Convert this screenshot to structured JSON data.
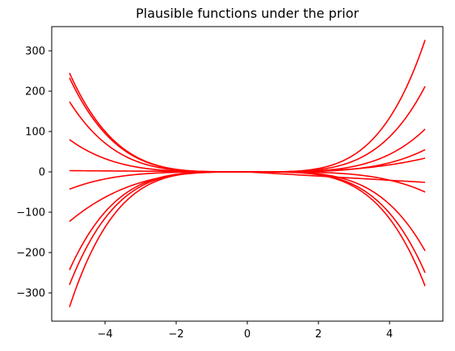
{
  "chart_data": {
    "type": "line",
    "title": "Plausible functions under the prior",
    "xlabel": "",
    "ylabel": "",
    "xlim": [
      -5.5,
      5.5
    ],
    "ylim": [
      -370,
      360
    ],
    "xticks": [
      -4,
      -2,
      0,
      2,
      4
    ],
    "xtick_labels": [
      "−4",
      "−2",
      "0",
      "2",
      "4"
    ],
    "yticks": [
      -300,
      -200,
      -100,
      0,
      100,
      200,
      300
    ],
    "ytick_labels": [
      "−300",
      "−200",
      "−100",
      "0",
      "100",
      "200",
      "300"
    ],
    "grid": false,
    "line_color": "#ff0000",
    "series": [
      {
        "x": [
          -5,
          0,
          5
        ],
        "values": [
          245,
          0,
          327
        ],
        "shape": "even"
      },
      {
        "x": [
          -5,
          0,
          5
        ],
        "values": [
          233,
          0,
          212
        ],
        "shape": "even"
      },
      {
        "x": [
          -5,
          0,
          5
        ],
        "values": [
          174,
          0,
          106
        ],
        "shape": "even"
      },
      {
        "x": [
          -5,
          0,
          5
        ],
        "values": [
          80,
          0,
          55
        ],
        "shape": "even"
      },
      {
        "x": [
          -5,
          0,
          5
        ],
        "values": [
          3,
          0,
          -26
        ],
        "shape": "linear"
      },
      {
        "x": [
          -5,
          0,
          5
        ],
        "values": [
          -43,
          0,
          -50
        ],
        "shape": "even"
      },
      {
        "x": [
          -5,
          0,
          5
        ],
        "values": [
          -123,
          0,
          34
        ],
        "shape": "odd"
      },
      {
        "x": [
          -5,
          0,
          5
        ],
        "values": [
          -243,
          0,
          -196
        ],
        "shape": "even"
      },
      {
        "x": [
          -5,
          0,
          5
        ],
        "values": [
          -280,
          0,
          -250
        ],
        "shape": "even"
      },
      {
        "x": [
          -5,
          0,
          5
        ],
        "values": [
          -335,
          0,
          -283
        ],
        "shape": "even"
      }
    ]
  }
}
